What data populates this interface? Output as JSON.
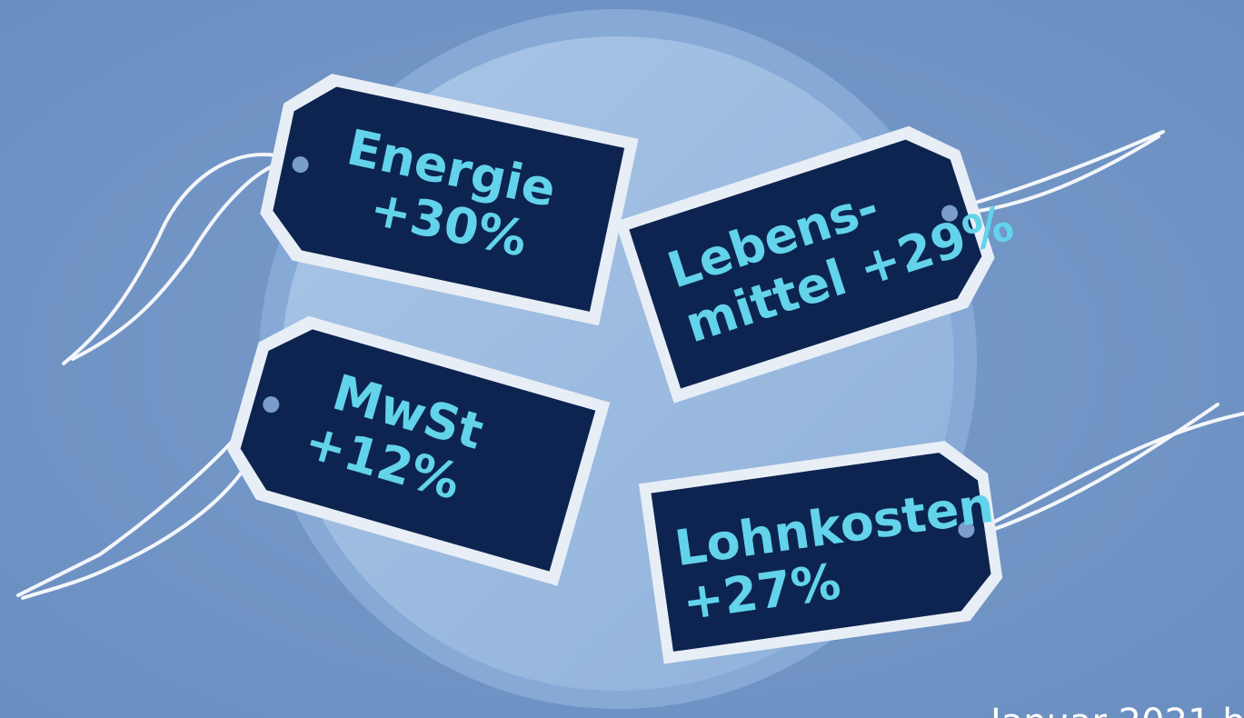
{
  "tags": [
    {
      "lines": [
        "Energie",
        "+30%"
      ]
    },
    {
      "lines": [
        "Lebens-",
        "mittel +29%"
      ]
    },
    {
      "lines": [
        "MwSt",
        "+12%"
      ]
    },
    {
      "lines": [
        "Lohnkosten",
        "+27%"
      ]
    }
  ],
  "footer": {
    "text": "Januar 2021 b"
  }
}
